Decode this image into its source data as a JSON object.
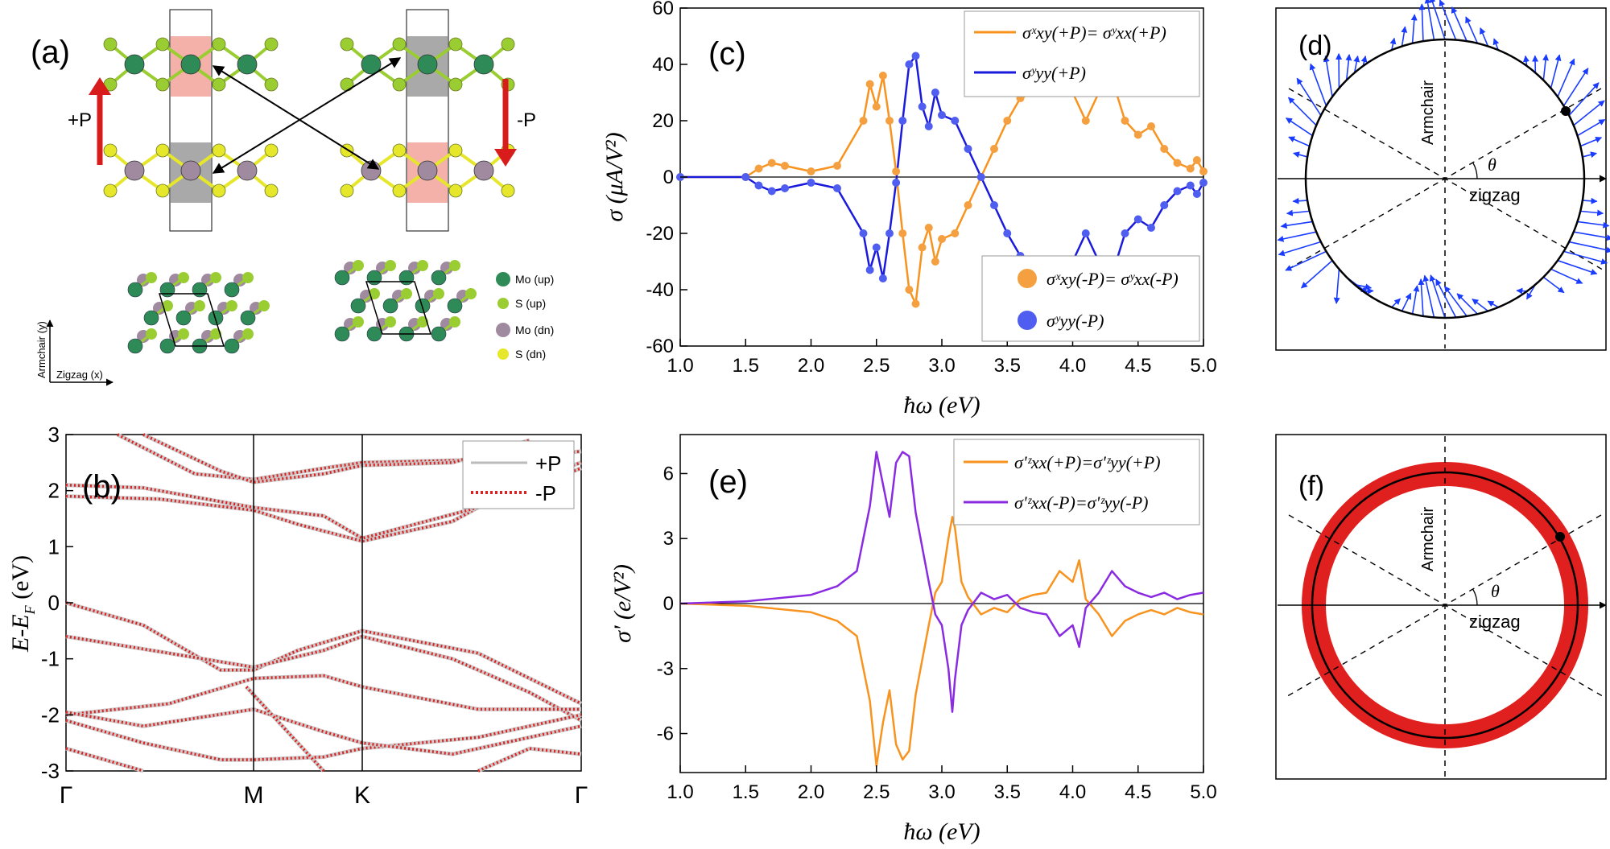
{
  "panels": {
    "a": {
      "label": "(a)",
      "plus_p": "+P",
      "minus_p": "-P",
      "axis_y": "Armchair (y)",
      "axis_x": "Zigzag (x)",
      "legend": [
        {
          "name": "Mo (up)",
          "color": "#2e8b57"
        },
        {
          "name": "S (up)",
          "color": "#9acd32"
        },
        {
          "name": "Mo (dn)",
          "color": "#a08aa0"
        },
        {
          "name": "S (dn)",
          "color": "#e6e62a"
        }
      ]
    },
    "b": {
      "label": "(b)",
      "ylabel": "E-E",
      "ylabel_sub": "F",
      "ylabel_unit": " (eV)",
      "yticks": [
        "3",
        "2",
        "1",
        "0",
        "-1",
        "-2",
        "-3"
      ],
      "kpoints": [
        "Γ",
        "M",
        "K",
        "Γ"
      ],
      "legend": [
        "+P",
        "-P"
      ]
    },
    "c": {
      "label": "(c)",
      "ylabel": "σ (μA/V²)",
      "xlabel": "ħω (eV)",
      "yticks": [
        "60",
        "40",
        "20",
        "0",
        "-20",
        "-40",
        "-60"
      ],
      "xticks": [
        "1.0",
        "1.5",
        "2.0",
        "2.5",
        "3.0",
        "3.5",
        "4.0",
        "4.5",
        "5.0"
      ],
      "legend_lines": [
        "σˣxy(+P)= σʸxx(+P)",
        "σʸyy(+P)"
      ],
      "legend_points": [
        "σˣxy(-P)= σʸxx(-P)",
        "σʸyy(-P)"
      ]
    },
    "d": {
      "label": "(d)",
      "armchair": "Armchair",
      "zigzag": "zigzag",
      "theta": "θ"
    },
    "e": {
      "label": "(e)",
      "ylabel": "σ' (e/V²)",
      "xlabel": "ħω (eV)",
      "yticks": [
        "6",
        "3",
        "0",
        "-3",
        "-6"
      ],
      "xticks": [
        "1.0",
        "1.5",
        "2.0",
        "2.5",
        "3.0",
        "3.5",
        "4.0",
        "4.5",
        "5.0"
      ],
      "legend": [
        "σ'ᶻxx(+P)=σ'ᶻyy(+P)",
        "σ'ᶻxx(-P)=σ'ᶻyy(-P)"
      ]
    },
    "f": {
      "label": "(f)",
      "armchair": "Armchair",
      "zigzag": "zigzag",
      "theta": "θ"
    }
  },
  "colors": {
    "orange": "#f7931e",
    "blue": "#1a1adc",
    "purple": "#8a2be2",
    "red": "#e02020",
    "pointorange": "#f5a040",
    "pointblue": "#4f5ef0"
  },
  "chart_data": [
    {
      "type": "line",
      "title": "(c)",
      "xlabel": "ħω (eV)",
      "ylabel": "σ (μA/V²)",
      "xlim": [
        1.0,
        5.0
      ],
      "ylim": [
        -60,
        60
      ],
      "x": [
        1.0,
        1.5,
        1.6,
        1.7,
        1.8,
        2.0,
        2.2,
        2.4,
        2.45,
        2.5,
        2.55,
        2.6,
        2.65,
        2.7,
        2.75,
        2.8,
        2.85,
        2.9,
        2.95,
        3.0,
        3.1,
        3.2,
        3.3,
        3.4,
        3.5,
        3.6,
        3.7,
        3.8,
        3.9,
        4.0,
        4.1,
        4.2,
        4.25,
        4.3,
        4.4,
        4.5,
        4.6,
        4.7,
        4.8,
        4.9,
        4.95,
        5.0
      ],
      "series": [
        {
          "name": "σˣxy(+P)= σʸxx(+P)",
          "values": [
            0,
            0,
            3,
            5,
            4,
            2,
            4,
            20,
            33,
            25,
            36,
            20,
            2,
            -20,
            -40,
            -45,
            -25,
            -18,
            -30,
            -22,
            -20,
            -10,
            0,
            10,
            20,
            28,
            30,
            30,
            40,
            30,
            20,
            30,
            38,
            35,
            20,
            15,
            18,
            10,
            5,
            3,
            6,
            2
          ]
        },
        {
          "name": "σʸyy(+P)",
          "values": [
            0,
            0,
            -3,
            -5,
            -4,
            -2,
            -4,
            -20,
            -33,
            -25,
            -36,
            -20,
            -2,
            20,
            40,
            43,
            25,
            18,
            30,
            22,
            20,
            10,
            0,
            -10,
            -20,
            -28,
            -30,
            -30,
            -40,
            -30,
            -20,
            -30,
            -38,
            -35,
            -20,
            -15,
            -18,
            -10,
            -5,
            -3,
            -6,
            -2
          ]
        },
        {
          "name": "σˣxy(-P)= σʸxx(-P)",
          "values": [
            0,
            0,
            3,
            5,
            4,
            2,
            4,
            20,
            33,
            25,
            36,
            20,
            2,
            -20,
            -40,
            -45,
            -25,
            -18,
            -30,
            -22,
            -20,
            -10,
            0,
            10,
            20,
            28,
            30,
            30,
            40,
            30,
            20,
            30,
            38,
            35,
            20,
            15,
            18,
            10,
            5,
            3,
            6,
            2
          ]
        },
        {
          "name": "σʸyy(-P)",
          "values": [
            0,
            0,
            -3,
            -5,
            -4,
            -2,
            -4,
            -20,
            -33,
            -25,
            -36,
            -20,
            -2,
            20,
            40,
            43,
            25,
            18,
            30,
            22,
            20,
            10,
            0,
            -10,
            -20,
            -28,
            -30,
            -30,
            -40,
            -30,
            -20,
            -30,
            -38,
            -35,
            -20,
            -15,
            -18,
            -10,
            -5,
            -3,
            -6,
            -2
          ]
        }
      ]
    },
    {
      "type": "line",
      "title": "(e)",
      "xlabel": "ħω (eV)",
      "ylabel": "σ' (e/V²)",
      "xlim": [
        1.0,
        5.0
      ],
      "ylim": [
        -7.8,
        7.8
      ],
      "x": [
        1.0,
        1.5,
        2.0,
        2.2,
        2.35,
        2.45,
        2.5,
        2.55,
        2.6,
        2.65,
        2.7,
        2.75,
        2.8,
        2.9,
        2.95,
        3.0,
        3.05,
        3.08,
        3.1,
        3.15,
        3.2,
        3.3,
        3.4,
        3.5,
        3.6,
        3.7,
        3.8,
        3.9,
        4.0,
        4.05,
        4.1,
        4.2,
        4.3,
        4.4,
        4.5,
        4.6,
        4.7,
        4.8,
        4.9,
        5.0
      ],
      "series": [
        {
          "name": "σ'ᶻxx(+P)=σ'ᶻyy(+P)",
          "values": [
            0,
            -0.1,
            -0.4,
            -0.8,
            -1.5,
            -4.5,
            -7.5,
            -5.5,
            -4,
            -6.5,
            -7.2,
            -6.8,
            -4.2,
            -1.0,
            0.5,
            1.0,
            3.0,
            4.0,
            3.5,
            1.0,
            0.3,
            -0.5,
            -0.2,
            -0.4,
            0.2,
            0.4,
            0.5,
            1.5,
            1.0,
            2.0,
            0.2,
            -0.5,
            -1.5,
            -0.8,
            -0.5,
            -0.3,
            -0.5,
            -0.2,
            -0.4,
            -0.5
          ]
        },
        {
          "name": "σ'ᶻxx(-P)=σ'ᶻyy(-P)",
          "values": [
            0,
            0.1,
            0.4,
            0.8,
            1.5,
            4.5,
            7.0,
            5.5,
            4,
            6.5,
            7.0,
            6.8,
            4.2,
            1.0,
            -0.5,
            -1.0,
            -3.0,
            -5.0,
            -3.5,
            -1.0,
            -0.3,
            0.5,
            0.2,
            0.4,
            -0.2,
            -0.4,
            -0.5,
            -1.5,
            -1.0,
            -2.0,
            -0.2,
            0.5,
            1.5,
            0.8,
            0.5,
            0.3,
            0.5,
            0.2,
            0.4,
            0.5
          ]
        }
      ]
    }
  ]
}
